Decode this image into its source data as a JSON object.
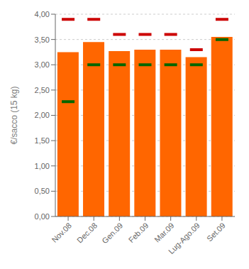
{
  "chart_data": {
    "type": "bar",
    "categories": [
      "Nov.08",
      "Dec.08",
      "Gen.09",
      "Feb.09",
      "Mar.09",
      "Lug-Ago.09",
      "Set.09"
    ],
    "ylabel": "€/sacco (15 kg)",
    "series": [
      {
        "type": "bar",
        "color": "#FF6600",
        "values": [
          3.25,
          3.45,
          3.27,
          3.3,
          3.3,
          3.15,
          3.55
        ]
      },
      {
        "type": "scatter",
        "marker": "hline",
        "color": "#CC0000",
        "values": [
          3.9,
          3.9,
          3.6,
          3.6,
          3.6,
          3.3,
          3.9
        ]
      },
      {
        "type": "scatter",
        "marker": "hline",
        "color": "#006600",
        "values": [
          2.27,
          3.0,
          3.0,
          3.0,
          3.0,
          3.0,
          3.5
        ]
      }
    ],
    "ylim": [
      0.0,
      4.0
    ],
    "yticks": [
      {
        "value": 0.0,
        "label": "0,00"
      },
      {
        "value": 0.5,
        "label": "0,50"
      },
      {
        "value": 1.0,
        "label": "1,00"
      },
      {
        "value": 1.5,
        "label": "1,50"
      },
      {
        "value": 2.0,
        "label": "2,00"
      },
      {
        "value": 2.5,
        "label": "2,50"
      },
      {
        "value": 3.0,
        "label": "3,00"
      },
      {
        "value": 3.5,
        "label": "3,50"
      },
      {
        "value": 4.0,
        "label": "4,00"
      }
    ],
    "grid": true
  }
}
